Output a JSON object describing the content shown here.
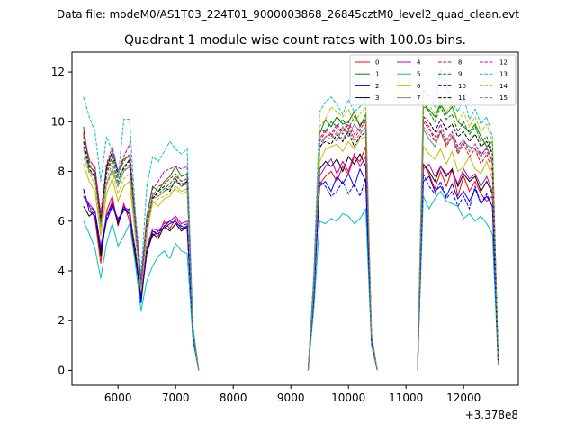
{
  "header": {
    "data_file": "Data file: modeM0/AS1T03_224T01_9000003868_26845cztM0_level2_quad_clean.evt"
  },
  "chart_data": {
    "type": "line",
    "title": "Quadrant 1 module wise count rates with 100.0s bins.",
    "xlabel": "",
    "ylabel": "",
    "x_offset_label": "+3.378e8",
    "xlim": [
      5200,
      12950
    ],
    "ylim": [
      -0.6,
      12.8
    ],
    "xticks": [
      6000,
      7000,
      8000,
      9000,
      10000,
      11000,
      12000
    ],
    "xtick_labels": [
      "6000",
      "7000",
      "8000",
      "9000",
      "10000",
      "11000",
      "12000"
    ],
    "yticks": [
      0,
      2,
      4,
      6,
      8,
      10,
      12
    ],
    "ytick_labels": [
      "0",
      "2",
      "4",
      "6",
      "8",
      "10",
      "12"
    ],
    "legend_position": "top-right",
    "legend_columns": 4,
    "segments": [
      {
        "x": [
          5400,
          5500,
          5600,
          5700,
          5800,
          5900,
          6000,
          6100,
          6200,
          6300,
          6400,
          6500,
          6600,
          6700,
          6800,
          6900,
          7000,
          7100,
          7200,
          7300,
          7400
        ]
      },
      {
        "x": [
          9300,
          9400,
          9500,
          9600,
          9700,
          9800,
          9900,
          10000,
          10100,
          10200,
          10300,
          10400,
          10500
        ]
      },
      {
        "x": [
          11200,
          11300,
          11400,
          11500,
          11600,
          11700,
          11800,
          11900,
          12000,
          12100,
          12200,
          12300,
          12400,
          12500,
          12600
        ]
      }
    ],
    "series": [
      {
        "name": "0",
        "color": "#ff0000",
        "dash": "solid",
        "values": [
          [
            7.2,
            6.6,
            6.1,
            4.3,
            6.4,
            7.0,
            5.8,
            6.7,
            6.0,
            4.5,
            3.0,
            4.8,
            5.6,
            5.4,
            6.0,
            5.7,
            6.1,
            5.8,
            5.7,
            1.5,
            0
          ],
          [
            0,
            3.2,
            7.5,
            7.8,
            8.0,
            7.6,
            8.2,
            7.9,
            8.6,
            8.4,
            9.0,
            1.3,
            0
          ],
          [
            0,
            8.3,
            7.9,
            7.3,
            8.0,
            7.4,
            8.1,
            7.0,
            7.8,
            7.2,
            7.6,
            7.1,
            6.8,
            7.0,
            0.3
          ]
        ]
      },
      {
        "name": "1",
        "color": "#008000",
        "dash": "solid",
        "values": [
          [
            9.8,
            8.2,
            8.0,
            6.0,
            8.1,
            8.8,
            8.0,
            8.5,
            8.6,
            6.0,
            3.6,
            6.2,
            7.4,
            7.2,
            7.6,
            7.8,
            8.2,
            7.8,
            7.9,
            1.7,
            0
          ],
          [
            0,
            3.7,
            9.5,
            10.1,
            9.8,
            10.2,
            9.9,
            10.0,
            10.4,
            9.8,
            10.3,
            1.4,
            0
          ],
          [
            0,
            10.6,
            10.5,
            10.2,
            10.7,
            10.3,
            10.6,
            10.0,
            9.8,
            9.6,
            9.9,
            9.4,
            9.0,
            9.2,
            0.4
          ]
        ]
      },
      {
        "name": "2",
        "color": "#0000ff",
        "dash": "solid",
        "values": [
          [
            7.3,
            6.4,
            6.2,
            4.8,
            6.0,
            6.6,
            6.1,
            6.4,
            6.5,
            4.7,
            2.7,
            4.9,
            5.4,
            5.6,
            5.7,
            5.9,
            6.0,
            5.7,
            5.8,
            1.4,
            0
          ],
          [
            0,
            2.9,
            7.4,
            7.6,
            7.2,
            7.8,
            7.5,
            7.9,
            7.4,
            8.1,
            7.6,
            1.2,
            0
          ],
          [
            0,
            7.6,
            7.8,
            7.2,
            7.4,
            7.0,
            7.5,
            6.9,
            7.2,
            6.8,
            7.3,
            6.7,
            7.0,
            6.6,
            0.3
          ]
        ]
      },
      {
        "name": "3",
        "color": "#000000",
        "dash": "solid",
        "values": [
          [
            6.6,
            6.2,
            6.4,
            4.6,
            6.2,
            6.7,
            5.9,
            6.5,
            6.3,
            4.6,
            2.9,
            4.7,
            5.5,
            5.3,
            5.8,
            5.6,
            5.9,
            5.6,
            5.8,
            1.4,
            0
          ],
          [
            0,
            3.0,
            8.1,
            8.4,
            8.2,
            8.5,
            8.0,
            8.6,
            8.3,
            8.7,
            8.2,
            1.3,
            0
          ],
          [
            0,
            8.3,
            8.0,
            7.6,
            8.2,
            7.8,
            8.1,
            7.4,
            7.9,
            7.6,
            7.8,
            7.2,
            7.6,
            7.1,
            0.3
          ]
        ]
      },
      {
        "name": "4",
        "color": "#c000c0",
        "dash": "solid",
        "values": [
          [
            7.0,
            6.7,
            6.4,
            5.0,
            6.2,
            6.8,
            6.0,
            6.6,
            6.4,
            4.8,
            3.1,
            4.9,
            5.7,
            5.6,
            5.9,
            6.0,
            6.2,
            5.9,
            6.0,
            1.5,
            0
          ],
          [
            0,
            3.1,
            7.8,
            8.2,
            8.5,
            7.9,
            8.4,
            8.0,
            8.7,
            8.2,
            8.6,
            1.3,
            0
          ],
          [
            0,
            8.1,
            8.3,
            7.8,
            8.2,
            7.9,
            8.0,
            7.5,
            8.1,
            7.7,
            7.9,
            7.4,
            7.8,
            7.2,
            0.3
          ]
        ]
      },
      {
        "name": "5",
        "color": "#00bfbf",
        "dash": "solid",
        "values": [
          [
            6.0,
            5.5,
            4.9,
            3.7,
            5.1,
            5.9,
            5.0,
            5.4,
            5.9,
            4.3,
            2.4,
            3.6,
            4.2,
            4.6,
            4.8,
            4.5,
            5.1,
            4.8,
            4.7,
            1.2,
            0
          ],
          [
            0,
            2.5,
            6.0,
            5.9,
            6.1,
            6.0,
            6.3,
            6.2,
            5.9,
            6.1,
            6.5,
            1.0,
            0
          ],
          [
            0,
            7.0,
            6.5,
            6.9,
            7.2,
            6.8,
            6.7,
            6.6,
            6.1,
            6.3,
            6.0,
            6.2,
            5.9,
            5.5,
            0.2
          ]
        ]
      },
      {
        "name": "6",
        "color": "#bfbf00",
        "dash": "solid",
        "values": [
          [
            8.3,
            7.6,
            7.2,
            5.4,
            7.1,
            7.7,
            6.8,
            7.4,
            7.6,
            5.4,
            3.2,
            5.4,
            6.8,
            6.6,
            6.9,
            7.0,
            7.4,
            7.2,
            7.3,
            1.6,
            0
          ],
          [
            0,
            3.4,
            8.4,
            8.9,
            9.0,
            9.1,
            8.8,
            9.2,
            8.9,
            9.3,
            9.4,
            1.3,
            0
          ],
          [
            0,
            9.0,
            8.7,
            8.5,
            8.9,
            8.3,
            8.8,
            8.0,
            8.2,
            8.6,
            8.1,
            7.9,
            8.4,
            7.7,
            0.3
          ]
        ]
      },
      {
        "name": "7",
        "color": "#808080",
        "dash": "solid",
        "values": [
          [
            8.9,
            8.0,
            7.8,
            5.8,
            7.5,
            8.1,
            7.4,
            8.0,
            8.2,
            5.7,
            3.4,
            5.8,
            7.1,
            7.0,
            7.2,
            7.3,
            7.6,
            7.5,
            7.6,
            1.6,
            0
          ],
          [
            0,
            3.5,
            8.9,
            9.4,
            9.5,
            9.2,
            9.8,
            9.4,
            9.9,
            9.6,
            9.7,
            1.4,
            0
          ],
          [
            0,
            9.7,
            9.3,
            9.0,
            9.6,
            9.1,
            9.4,
            8.8,
            9.2,
            9.0,
            8.9,
            8.6,
            9.0,
            8.4,
            0.3
          ]
        ]
      },
      {
        "name": "8",
        "color": "#ff0000",
        "dash": "dashed",
        "values": [
          [
            9.6,
            8.4,
            8.2,
            6.2,
            8.0,
            8.6,
            7.9,
            8.4,
            8.7,
            6.0,
            3.5,
            6.0,
            7.0,
            7.4,
            7.5,
            7.7,
            7.9,
            7.6,
            7.7,
            1.6,
            0
          ],
          [
            0,
            3.6,
            9.2,
            9.6,
            9.4,
            9.8,
            9.5,
            9.9,
            9.3,
            9.7,
            10.0,
            1.4,
            0
          ],
          [
            0,
            10.1,
            9.8,
            9.2,
            9.6,
            9.0,
            9.4,
            8.7,
            9.1,
            8.6,
            8.9,
            8.3,
            8.7,
            8.0,
            0.3
          ]
        ]
      },
      {
        "name": "9",
        "color": "#008000",
        "dash": "dashed",
        "values": [
          [
            9.4,
            8.3,
            7.9,
            5.9,
            7.9,
            8.5,
            7.6,
            8.2,
            8.4,
            5.8,
            3.4,
            5.9,
            7.0,
            7.1,
            7.3,
            7.5,
            7.8,
            7.6,
            7.7,
            1.7,
            0
          ],
          [
            0,
            3.6,
            9.7,
            9.6,
            10.0,
            9.8,
            10.1,
            9.7,
            10.2,
            9.9,
            10.1,
            1.4,
            0
          ],
          [
            0,
            10.8,
            10.4,
            10.0,
            10.6,
            10.1,
            10.3,
            9.6,
            10.0,
            9.5,
            9.8,
            9.2,
            9.4,
            8.8,
            0.4
          ]
        ]
      },
      {
        "name": "10",
        "color": "#0000ff",
        "dash": "dashed",
        "values": [
          [
            7.0,
            6.6,
            6.4,
            4.9,
            6.1,
            6.7,
            6.0,
            6.6,
            6.2,
            4.9,
            2.8,
            5.0,
            5.6,
            5.5,
            5.8,
            6.0,
            5.9,
            5.8,
            5.9,
            1.4,
            0
          ],
          [
            0,
            2.9,
            7.6,
            7.4,
            7.0,
            7.2,
            7.6,
            7.1,
            7.5,
            7.0,
            7.7,
            1.2,
            0
          ],
          [
            0,
            7.9,
            7.4,
            7.1,
            7.6,
            6.9,
            7.2,
            6.6,
            7.0,
            6.5,
            7.4,
            6.7,
            7.1,
            6.6,
            0.3
          ]
        ]
      },
      {
        "name": "11",
        "color": "#000000",
        "dash": "dashed",
        "values": [
          [
            9.2,
            8.1,
            7.8,
            6.0,
            8.2,
            8.8,
            7.8,
            8.1,
            8.5,
            5.9,
            3.5,
            5.8,
            6.9,
            7.2,
            7.4,
            7.2,
            7.7,
            7.4,
            7.6,
            1.6,
            0
          ],
          [
            0,
            3.5,
            9.0,
            9.2,
            9.1,
            9.5,
            9.2,
            9.6,
            9.0,
            9.4,
            9.6,
            1.4,
            0
          ],
          [
            0,
            10.2,
            10.0,
            9.6,
            10.1,
            9.7,
            9.9,
            9.4,
            9.6,
            9.2,
            9.5,
            9.0,
            9.2,
            8.7,
            0.3
          ]
        ]
      },
      {
        "name": "12",
        "color": "#c000c0",
        "dash": "dashed",
        "values": [
          [
            9.5,
            8.5,
            8.1,
            6.3,
            8.3,
            9.0,
            8.0,
            8.6,
            9.1,
            6.1,
            3.6,
            6.2,
            7.3,
            7.6,
            8.0,
            8.1,
            8.2,
            8.1,
            8.2,
            1.7,
            0
          ],
          [
            0,
            3.6,
            9.3,
            9.7,
            9.5,
            9.9,
            9.6,
            10.0,
            9.5,
            9.8,
            10.1,
            1.4,
            0
          ],
          [
            0,
            10.0,
            9.7,
            9.4,
            9.9,
            9.3,
            9.6,
            9.0,
            9.3,
            8.8,
            9.1,
            8.7,
            8.9,
            8.4,
            0.3
          ]
        ]
      },
      {
        "name": "13",
        "color": "#00bfbf",
        "dash": "dashed",
        "values": [
          [
            11.0,
            10.2,
            9.6,
            7.6,
            9.4,
            8.8,
            7.7,
            10.1,
            10.1,
            6.4,
            3.9,
            7.4,
            8.6,
            8.4,
            8.8,
            9.2,
            8.9,
            8.7,
            8.9,
            1.8,
            0
          ],
          [
            0,
            4.0,
            10.4,
            10.8,
            11.0,
            10.7,
            10.3,
            10.9,
            10.4,
            10.6,
            10.9,
            1.5,
            0
          ],
          [
            0,
            11.3,
            11.0,
            10.6,
            12.1,
            11.4,
            10.8,
            10.4,
            11.0,
            10.1,
            10.5,
            9.9,
            10.2,
            9.4,
            0.4
          ]
        ]
      },
      {
        "name": "14",
        "color": "#bfbf00",
        "dash": "dashed",
        "values": [
          [
            8.6,
            7.9,
            7.5,
            5.6,
            7.4,
            8.0,
            7.1,
            7.7,
            7.9,
            5.5,
            3.3,
            5.6,
            6.7,
            6.9,
            7.0,
            7.1,
            7.3,
            7.1,
            7.2,
            1.6,
            0
          ],
          [
            0,
            3.4,
            9.8,
            10.1,
            10.6,
            10.4,
            10.2,
            10.5,
            10.0,
            10.3,
            10.6,
            1.5,
            0
          ],
          [
            0,
            10.9,
            10.7,
            10.3,
            10.8,
            10.4,
            10.7,
            10.0,
            10.4,
            9.8,
            10.2,
            9.6,
            9.9,
            9.2,
            0.4
          ]
        ]
      },
      {
        "name": "15",
        "color": "#808080",
        "dash": "dashed",
        "values": [
          [
            9.0,
            8.0,
            7.7,
            5.8,
            7.7,
            8.3,
            7.5,
            8.0,
            8.3,
            5.8,
            3.4,
            5.9,
            6.9,
            7.0,
            7.2,
            7.4,
            7.6,
            7.4,
            7.5,
            1.6,
            0
          ],
          [
            0,
            3.5,
            9.1,
            9.4,
            9.3,
            9.6,
            9.3,
            9.7,
            9.2,
            9.5,
            9.8,
            1.4,
            0
          ],
          [
            0,
            9.8,
            9.5,
            9.2,
            9.7,
            9.2,
            9.5,
            8.9,
            9.2,
            8.8,
            9.1,
            8.6,
            8.8,
            8.3,
            0.3
          ]
        ]
      }
    ]
  }
}
